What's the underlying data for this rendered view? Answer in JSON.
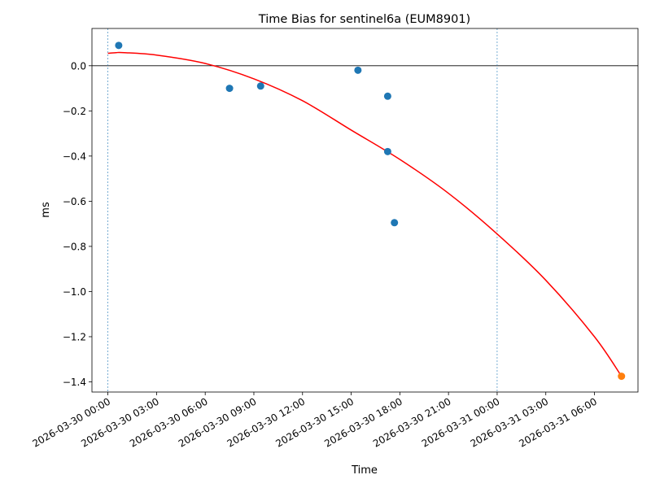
{
  "chart_data": {
    "type": "scatter",
    "title": "Time Bias for sentinel6a (EUM8901)",
    "xlabel": "Time",
    "ylabel": "ms",
    "x_start": "2026-03-30 00:00",
    "xlim": [
      "2026-03-29 23:01",
      "2026-03-31 08:41"
    ],
    "ylim": [
      -1.445,
      0.165
    ],
    "yticks": [
      0.0,
      -0.2,
      -0.4,
      -0.6,
      -0.8,
      -1.0,
      -1.2,
      -1.4
    ],
    "ytick_labels": [
      "0.0",
      "−0.2",
      "−0.4",
      "−0.6",
      "−0.8",
      "−1.0",
      "−1.2",
      "−1.4"
    ],
    "xticks": [
      "2026-03-30 00:00",
      "2026-03-30 03:00",
      "2026-03-30 06:00",
      "2026-03-30 09:00",
      "2026-03-30 12:00",
      "2026-03-30 15:00",
      "2026-03-30 18:00",
      "2026-03-30 21:00",
      "2026-03-31 00:00",
      "2026-03-31 03:00",
      "2026-03-31 06:00"
    ],
    "grid": false,
    "reference_hline": 0.0,
    "reference_vlines": [
      "2026-03-30 00:00",
      "2026-03-31 00:00"
    ],
    "series": [
      {
        "kind": "scatter",
        "color": "#1f77b4",
        "points": [
          {
            "x": "2026-03-30 00:40",
            "y": 0.09
          },
          {
            "x": "2026-03-30 07:30",
            "y": -0.1
          },
          {
            "x": "2026-03-30 09:25",
            "y": -0.09
          },
          {
            "x": "2026-03-30 15:25",
            "y": -0.02
          },
          {
            "x": "2026-03-30 17:15",
            "y": -0.135
          },
          {
            "x": "2026-03-30 17:15",
            "y": -0.38
          },
          {
            "x": "2026-03-30 17:40",
            "y": -0.695
          }
        ]
      },
      {
        "kind": "scatter",
        "color": "#ff7f0e",
        "points": [
          {
            "x": "2026-03-31 07:40",
            "y": -1.375
          }
        ]
      },
      {
        "kind": "line",
        "color": "#ff0000",
        "points": [
          {
            "x": "2026-03-30 00:00",
            "y": 0.055
          },
          {
            "x": "2026-03-30 00:30",
            "y": 0.058
          },
          {
            "x": "2026-03-30 01:00",
            "y": 0.058
          },
          {
            "x": "2026-03-30 03:00",
            "y": 0.047
          },
          {
            "x": "2026-03-30 06:00",
            "y": 0.01
          },
          {
            "x": "2026-03-30 09:00",
            "y": -0.058
          },
          {
            "x": "2026-03-30 12:00",
            "y": -0.155
          },
          {
            "x": "2026-03-30 15:00",
            "y": -0.285
          },
          {
            "x": "2026-03-30 18:00",
            "y": -0.415
          },
          {
            "x": "2026-03-30 21:00",
            "y": -0.565
          },
          {
            "x": "2026-03-31 00:00",
            "y": -0.745
          },
          {
            "x": "2026-03-31 03:00",
            "y": -0.95
          },
          {
            "x": "2026-03-31 06:00",
            "y": -1.2
          },
          {
            "x": "2026-03-31 07:40",
            "y": -1.375
          }
        ]
      }
    ]
  }
}
